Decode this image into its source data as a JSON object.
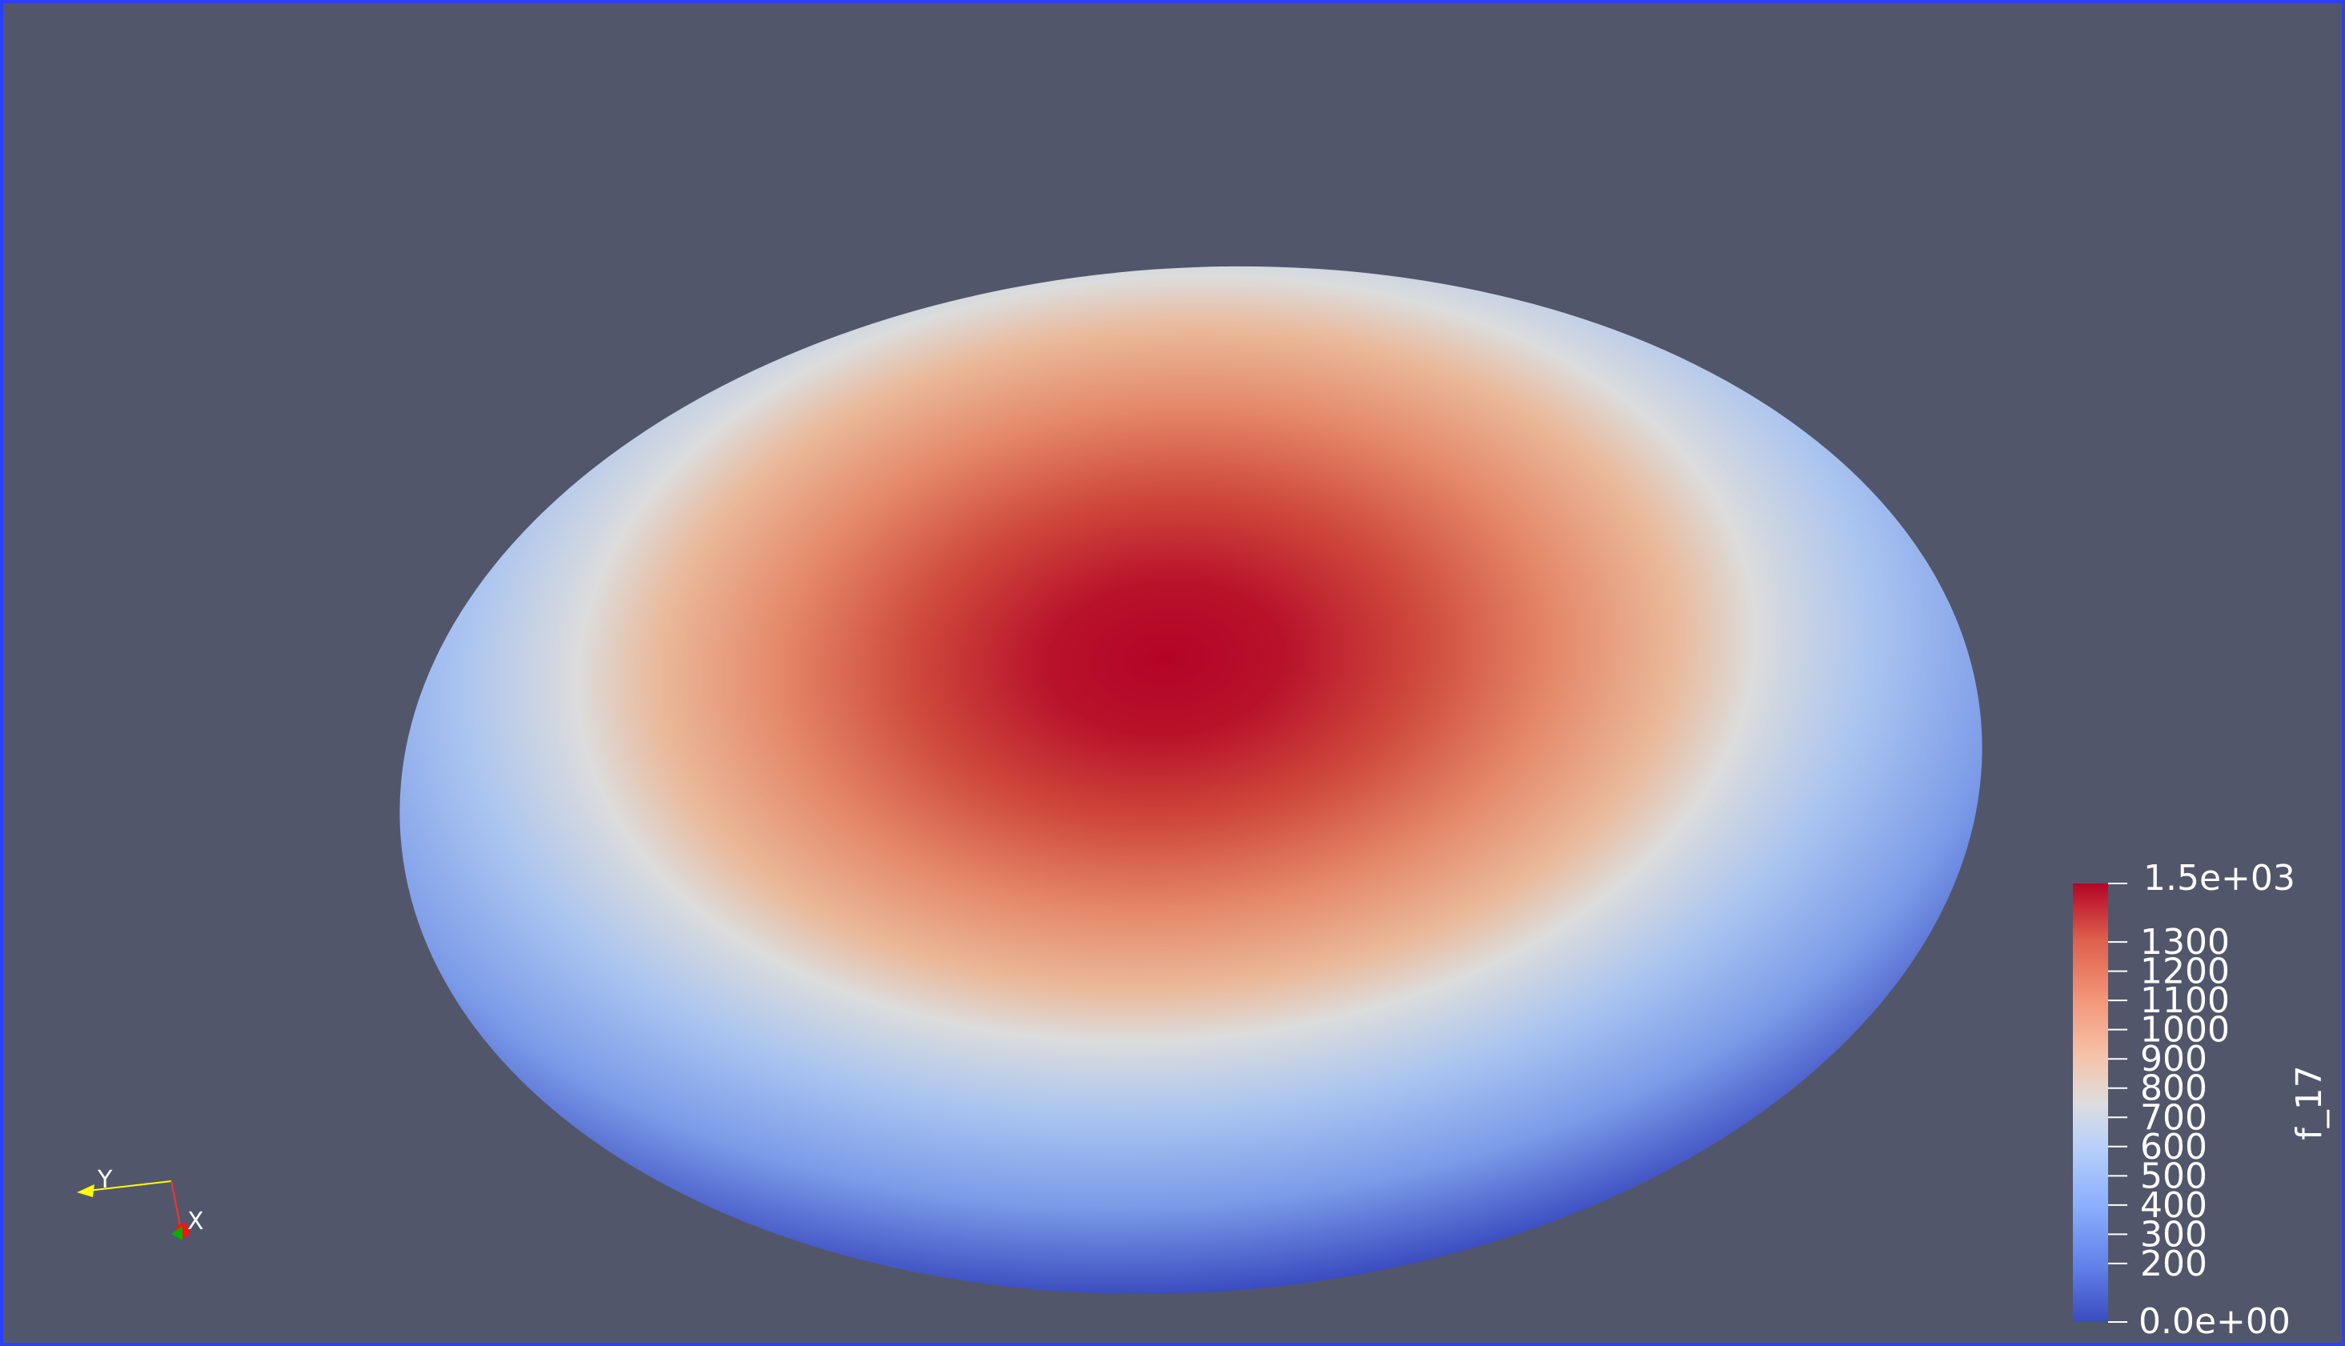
{
  "viewport": {
    "background": "#52566b",
    "border_color": "#2a3fff"
  },
  "field": {
    "name": "f_17",
    "colormap": "Cool to Warm",
    "range": [
      0,
      1500
    ]
  },
  "colorbar": {
    "title": "f_17",
    "max_label": "1.5e+03",
    "min_label": "0.0e+00",
    "ticks": [
      "200",
      "300",
      "400",
      "500",
      "600",
      "700",
      "800",
      "900",
      "1000",
      "1100",
      "1200",
      "1300"
    ],
    "tick_values": [
      200,
      300,
      400,
      500,
      600,
      700,
      800,
      900,
      1000,
      1100,
      1200,
      1300
    ]
  },
  "orientation_axes": {
    "y_label": "Y",
    "x_label": "X",
    "y_color": "#ffff00",
    "x_color": "#ff0000",
    "z_color": "#00c000"
  }
}
